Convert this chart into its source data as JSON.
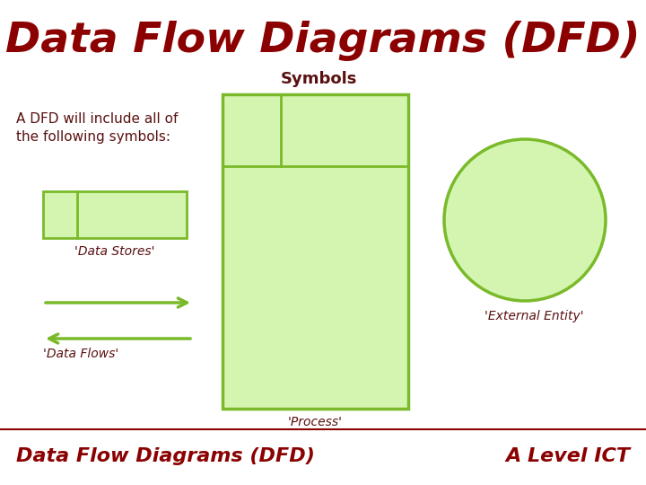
{
  "title": "Data Flow Diagrams (DFD)",
  "subtitle": "Symbols",
  "body_text": "A DFD will include all of\nthe following symbols:",
  "footer_left": "Data Flow Diagrams (DFD)",
  "footer_right": "A Level ICT",
  "title_color": "#8B0000",
  "subtitle_color": "#5a1010",
  "body_color": "#5a1010",
  "footer_color": "#8B0000",
  "green_fill": "#d4f5b0",
  "green_edge": "#7aba2a",
  "bg_color": "#ffffff",
  "footer_line_color": "#8B0000",
  "data_stores_label": "'Data Stores'",
  "data_flows_label": "'Data Flows'",
  "process_label": "'Process'",
  "external_entity_label": "'External Entity'",
  "arrow_color": "#7aba2a",
  "title_fontsize": 34,
  "subtitle_fontsize": 13,
  "body_fontsize": 11,
  "label_fontsize": 10,
  "footer_fontsize": 16
}
